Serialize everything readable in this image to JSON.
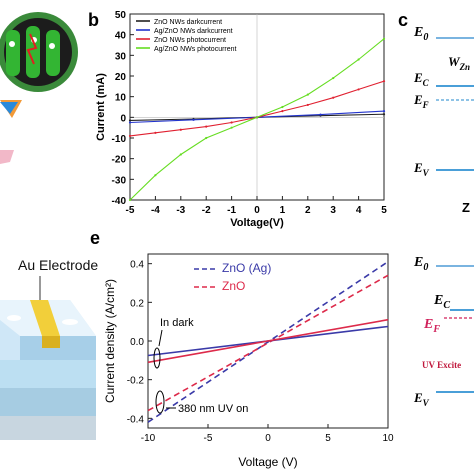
{
  "panel_labels": {
    "b": "b",
    "c": "c",
    "e": "e"
  },
  "left_fragments": {
    "electrode_label": "Au Electrode"
  },
  "band_diagram": {
    "top": {
      "E0": "E",
      "E0_sub": "0",
      "W": "W",
      "W_sub": "Zn",
      "EC": "E",
      "EC_sub": "C",
      "EF": "E",
      "EF_sub": "F",
      "EV": "E",
      "EV_sub": "V",
      "cut_char": "Z"
    },
    "bottom": {
      "E0": "E",
      "E0_sub": "0",
      "EC": "E",
      "EC_sub": "C",
      "EF": "E",
      "EF_sub": "F",
      "uv_text": "UV Excite",
      "EV": "E",
      "EV_sub": "V"
    }
  },
  "chart_data": [
    {
      "type": "line",
      "panel": "b",
      "xlabel": "Voltage(V)",
      "ylabel": "Current (mA)",
      "xlim": [
        -5,
        5
      ],
      "ylim": [
        -40,
        50
      ],
      "xticks": [
        "-5",
        "-4",
        "-3",
        "-2",
        "-1",
        "0",
        "1",
        "2",
        "3",
        "4",
        "5"
      ],
      "yticks": [
        "-40",
        "-30",
        "-20",
        "-10",
        "0",
        "10",
        "20",
        "30",
        "40",
        "50"
      ],
      "legend_position": "top-left",
      "series": [
        {
          "name": "ZnO NWs darkcurrent",
          "color": "#222222",
          "x": [
            -5,
            -2.5,
            0,
            2.5,
            5
          ],
          "y": [
            -1.5,
            -0.8,
            0,
            0.8,
            1.5
          ]
        },
        {
          "name": "Ag/ZnO NWs darkcurrent",
          "color": "#2233cc",
          "x": [
            -5,
            -2.5,
            0,
            2.5,
            5
          ],
          "y": [
            -2.5,
            -1.2,
            0,
            1.3,
            3
          ]
        },
        {
          "name": "ZnO NWs photocurrent",
          "color": "#e02030",
          "x": [
            -5,
            -4,
            -3,
            -2,
            -1,
            0,
            1,
            2,
            3,
            4,
            5
          ],
          "y": [
            -9,
            -7.5,
            -6,
            -4.5,
            -2.5,
            0,
            3,
            6,
            9.5,
            13.5,
            17.5
          ]
        },
        {
          "name": "Ag/ZnO NWs photocurrent",
          "color": "#66dd22",
          "x": [
            -5,
            -4,
            -3,
            -2,
            -1,
            0,
            1,
            2,
            3,
            4,
            5
          ],
          "y": [
            -40,
            -28,
            -18,
            -10,
            -5,
            0,
            5,
            11,
            19,
            28,
            38
          ]
        }
      ]
    },
    {
      "type": "line",
      "panel": "e",
      "xlabel": "Voltage (V)",
      "ylabel": "Current density (A/cm²)",
      "xlim": [
        -10,
        10
      ],
      "ylim": [
        -0.45,
        0.45
      ],
      "xticks": [
        "-10",
        "-5",
        "0",
        "5",
        "10"
      ],
      "yticks": [
        "-0.4",
        "-0.2",
        "0.0",
        "0.2",
        "0.4"
      ],
      "legend_position": "top-left",
      "series": [
        {
          "name": "ZnO (Ag)",
          "color": "#3a3aa8",
          "dash": true,
          "x": [
            -10,
            10
          ],
          "y": [
            -0.42,
            0.41
          ]
        },
        {
          "name": "ZnO",
          "color": "#dd2a4a",
          "dash": true,
          "x": [
            -10,
            10
          ],
          "y": [
            -0.36,
            0.34
          ]
        },
        {
          "name": "",
          "color": "#3a3aa8",
          "dash": false,
          "x": [
            -10,
            10
          ],
          "y": [
            -0.075,
            0.075
          ]
        },
        {
          "name": "",
          "color": "#dd2a4a",
          "dash": false,
          "x": [
            -10,
            10
          ],
          "y": [
            -0.11,
            0.11
          ]
        }
      ],
      "annotations": {
        "dark": "In dark",
        "uv": "380 nm UV on"
      }
    }
  ]
}
